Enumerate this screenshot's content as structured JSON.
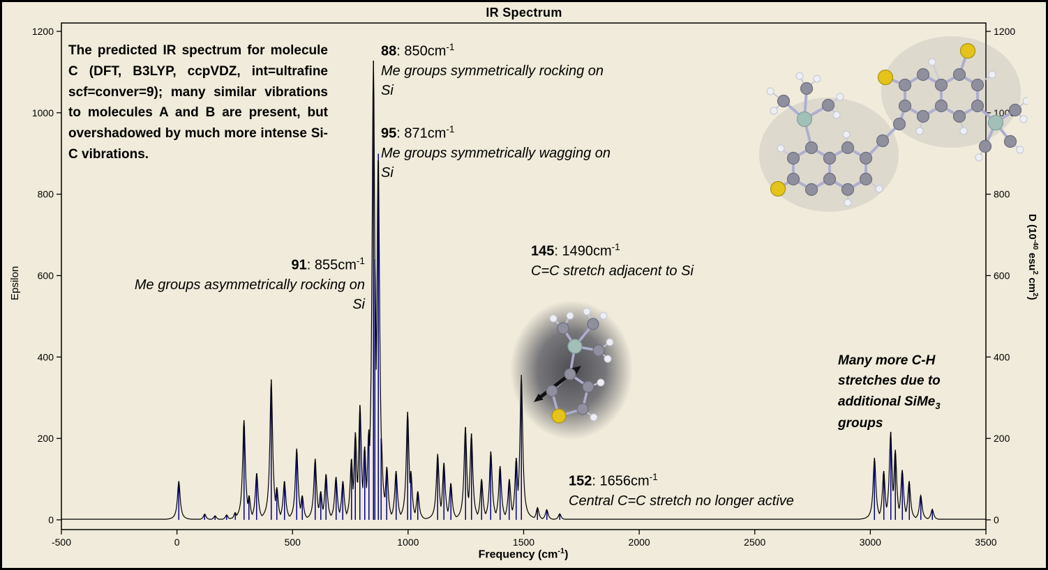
{
  "title": "IR Spectrum",
  "description": "The predicted IR spectrum for molecule C (DFT, B3LYP, ccpVDZ, int=ultrafine scf=conver=9); many similar vibrations to molecules A and B are present, but overshadowed by much more intense Si-C vibrations.",
  "axes": {
    "x": {
      "p1": "Frequency (cm",
      "sup": "-1",
      "p2": ")"
    },
    "y_left": {
      "label": "Epsilon"
    },
    "y_right": {
      "p1": "D (10",
      "s1": "-40",
      "p2": " esu",
      "s2": "2",
      "p3": " cm",
      "s3": "2",
      "p4": ")"
    }
  },
  "notes": [
    {
      "id": "88",
      "sep": ": ",
      "freq": "850cm",
      "sup": "-1",
      "desc": "Me groups symmetrically rocking on Si"
    },
    {
      "id": "95",
      "sep": ": ",
      "freq": "871cm",
      "sup": "-1",
      "desc": "Me groups symmetrically wagging on Si"
    },
    {
      "id": "91",
      "sep": ": ",
      "freq": "855cm",
      "sup": "-1",
      "desc": "Me groups asymmetrically rocking on Si"
    },
    {
      "id": "145",
      "sep": ": ",
      "freq": "1490cm",
      "sup": "-1",
      "desc": "C=C stretch adjacent to Si"
    },
    {
      "id": "152",
      "sep": ": ",
      "freq": "1656cm",
      "sup": "-1",
      "desc": "Central C=C stretch no longer active"
    }
  ],
  "side_note": {
    "p1": "Many more C-H stretches due to additional SiMe",
    "sub": "3",
    "p2": " groups"
  },
  "chart_data": {
    "type": "line",
    "title": "IR Spectrum",
    "xlabel": "Frequency (cm-1)",
    "ylabel_left": "Epsilon",
    "ylabel_right": "D (10^-40 esu^2 cm^2)",
    "xlim": [
      -500,
      3500
    ],
    "ylim": [
      0,
      1200
    ],
    "xticks": [
      -500,
      0,
      500,
      1000,
      1500,
      2000,
      2500,
      3000,
      3500
    ],
    "yticks": [
      0,
      200,
      400,
      600,
      800,
      1000,
      1200
    ],
    "grid": false,
    "envelope_hwhm_cm1": 7,
    "sticks": [
      [
        8,
        95
      ],
      [
        120,
        14
      ],
      [
        165,
        10
      ],
      [
        215,
        12
      ],
      [
        252,
        18
      ],
      [
        290,
        245
      ],
      [
        312,
        60
      ],
      [
        345,
        115
      ],
      [
        408,
        345
      ],
      [
        432,
        80
      ],
      [
        465,
        95
      ],
      [
        518,
        175
      ],
      [
        542,
        60
      ],
      [
        598,
        150
      ],
      [
        622,
        70
      ],
      [
        645,
        112
      ],
      [
        688,
        105
      ],
      [
        718,
        95
      ],
      [
        755,
        150
      ],
      [
        772,
        215
      ],
      [
        792,
        282
      ],
      [
        812,
        180
      ],
      [
        830,
        222
      ],
      [
        850,
        1128
      ],
      [
        856,
        640
      ],
      [
        871,
        900
      ],
      [
        884,
        200
      ],
      [
        908,
        130
      ],
      [
        948,
        120
      ],
      [
        998,
        265
      ],
      [
        1012,
        120
      ],
      [
        1042,
        70
      ],
      [
        1128,
        162
      ],
      [
        1155,
        140
      ],
      [
        1185,
        90
      ],
      [
        1248,
        228
      ],
      [
        1274,
        212
      ],
      [
        1318,
        100
      ],
      [
        1358,
        168
      ],
      [
        1398,
        132
      ],
      [
        1438,
        100
      ],
      [
        1468,
        152
      ],
      [
        1490,
        356
      ],
      [
        1560,
        30
      ],
      [
        1600,
        25
      ],
      [
        1656,
        15
      ],
      [
        3018,
        152
      ],
      [
        3058,
        120
      ],
      [
        3088,
        216
      ],
      [
        3108,
        172
      ],
      [
        3138,
        122
      ],
      [
        3168,
        95
      ],
      [
        3218,
        60
      ],
      [
        3268,
        26
      ]
    ],
    "labeled_modes": [
      {
        "mode": 88,
        "freq_cm1": 850,
        "assignment": "Me groups symmetrically rocking on Si"
      },
      {
        "mode": 91,
        "freq_cm1": 855,
        "assignment": "Me groups asymmetrically rocking on Si"
      },
      {
        "mode": 95,
        "freq_cm1": 871,
        "assignment": "Me groups symmetrically wagging on Si"
      },
      {
        "mode": 145,
        "freq_cm1": 1490,
        "assignment": "C=C stretch adjacent to Si"
      },
      {
        "mode": 152,
        "freq_cm1": 1656,
        "assignment": "Central C=C stretch no longer active"
      }
    ]
  }
}
